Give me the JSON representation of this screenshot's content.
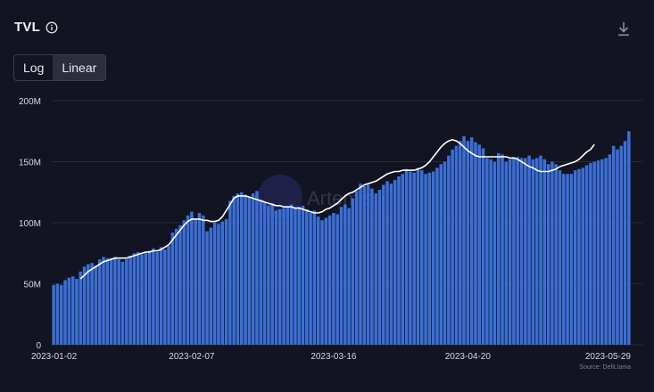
{
  "header": {
    "title": "TVL",
    "info_icon": "info-icon",
    "download_icon": "download-icon"
  },
  "scale_toggle": {
    "options": [
      "Log",
      "Linear"
    ],
    "selected": "Linear"
  },
  "colors": {
    "bar": "#3b6fd6",
    "line": "#ffffff",
    "grid": "#262a3a",
    "background": "#121421",
    "axis_text": "#d6d8e0"
  },
  "watermark": "Artemis",
  "source": "Source: DefiLlama",
  "chart_data": {
    "type": "bar",
    "title": "TVL",
    "xlabel": "",
    "ylabel": "",
    "ylim": [
      0,
      200000000
    ],
    "yticks": [
      {
        "value": 0,
        "label": "0"
      },
      {
        "value": 50000000,
        "label": "50M"
      },
      {
        "value": 100000000,
        "label": "100M"
      },
      {
        "value": 150000000,
        "label": "150M"
      },
      {
        "value": 200000000,
        "label": "200M"
      }
    ],
    "xticks": [
      {
        "index": 0,
        "label": "2023-01-02"
      },
      {
        "index": 36,
        "label": "2023-02-07"
      },
      {
        "index": 73,
        "label": "2023-03-16"
      },
      {
        "index": 108,
        "label": "2023-04-20"
      },
      {
        "index": 147,
        "label": "2023-05-29"
      }
    ],
    "x_start": "2023-01-02",
    "x_end": "2023-05-29",
    "grid": true,
    "series": [
      {
        "name": "TVL",
        "type": "bar",
        "values": [
          49,
          50,
          49,
          53,
          55,
          56,
          54,
          60,
          64,
          66,
          67,
          65,
          70,
          72,
          71,
          71,
          72,
          70,
          68,
          70,
          73,
          75,
          76,
          74,
          75,
          77,
          79,
          76,
          80,
          78,
          81,
          92,
          95,
          98,
          102,
          106,
          109,
          103,
          108,
          106,
          93,
          96,
          100,
          99,
          101,
          103,
          118,
          122,
          124,
          125,
          123,
          121,
          124,
          126,
          118,
          117,
          114,
          116,
          110,
          111,
          112,
          113,
          115,
          112,
          113,
          114,
          111,
          108,
          110,
          105,
          102,
          104,
          106,
          108,
          107,
          113,
          115,
          112,
          120,
          126,
          132,
          130,
          131,
          128,
          124,
          127,
          131,
          134,
          132,
          135,
          138,
          140,
          144,
          142,
          141,
          145,
          143,
          140,
          141,
          142,
          145,
          148,
          150,
          155,
          160,
          163,
          167,
          171,
          167,
          170,
          166,
          164,
          161,
          153,
          152,
          150,
          157,
          156,
          150,
          152,
          154,
          154,
          153,
          153,
          155,
          152,
          153,
          155,
          152,
          148,
          150,
          148,
          143,
          140,
          140,
          140,
          143,
          144,
          145,
          147,
          149,
          150,
          151,
          152,
          153,
          156,
          163,
          160,
          163,
          167,
          175
        ]
      },
      {
        "name": "7D MA",
        "type": "line",
        "start_index": 7,
        "values": [
          54,
          57,
          60,
          62,
          64,
          66,
          68,
          69,
          70,
          71,
          71,
          71,
          71,
          72,
          73,
          74,
          75,
          76,
          76,
          77,
          77,
          78,
          80,
          82,
          86,
          90,
          94,
          98,
          101,
          103,
          103,
          103,
          102,
          102,
          101,
          101,
          102,
          105,
          110,
          115,
          120,
          122,
          122,
          122,
          121,
          120,
          119,
          118,
          117,
          116,
          115,
          114,
          114,
          113,
          113,
          113,
          112,
          112,
          111,
          110,
          109,
          108,
          108,
          109,
          111,
          112,
          114,
          116,
          119,
          122,
          124,
          125,
          127,
          129,
          131,
          132,
          133,
          134,
          136,
          138,
          140,
          141,
          142,
          142,
          143,
          143,
          143,
          143,
          144,
          145,
          147,
          150,
          154,
          158,
          162,
          165,
          167,
          168,
          167,
          165,
          162,
          159,
          157,
          155,
          154,
          154,
          154,
          154,
          154,
          154,
          154,
          154,
          153,
          153,
          152,
          150,
          148,
          146,
          145,
          143,
          142,
          142,
          142,
          143,
          144,
          146,
          147,
          148,
          149,
          150,
          152,
          155,
          158,
          160,
          164
        ]
      }
    ]
  }
}
